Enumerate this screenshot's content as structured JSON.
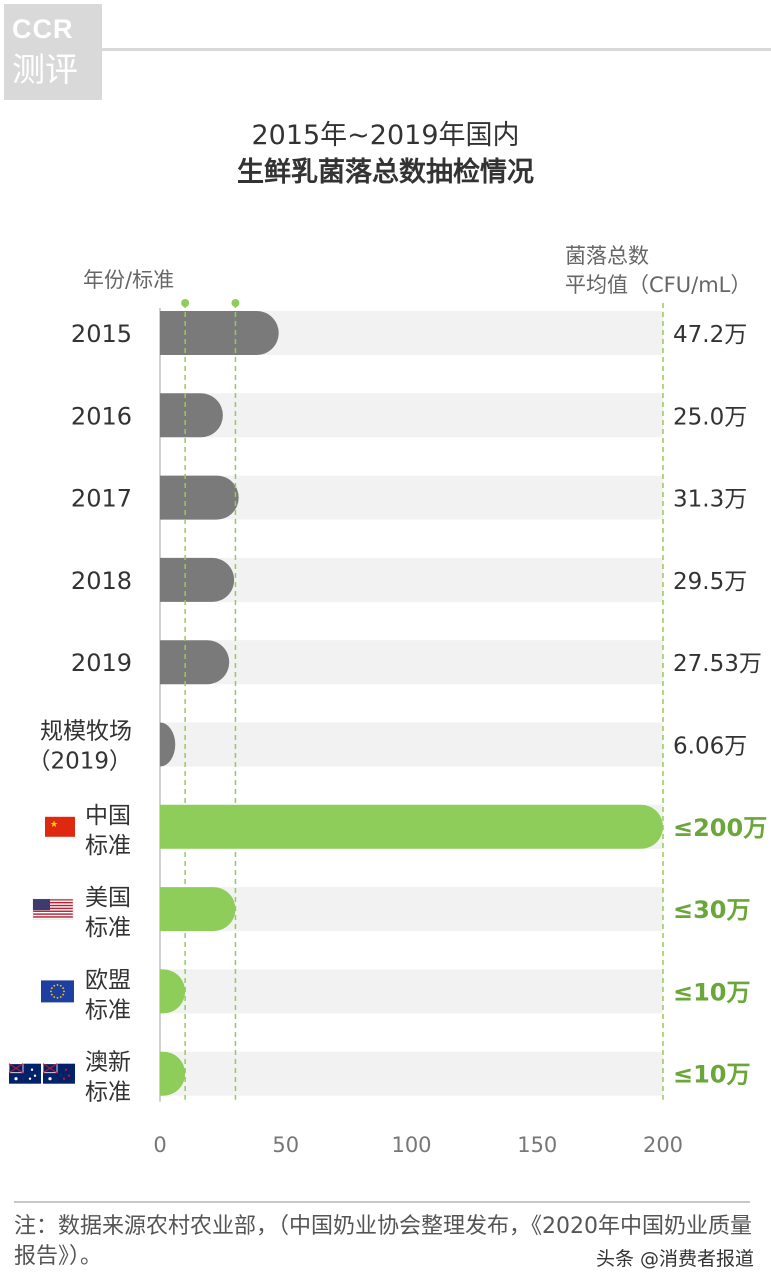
{
  "logo": {
    "line1": "CCR",
    "line2": "测评"
  },
  "title": {
    "line1": "2015年~2019年国内",
    "line2": "生鲜乳菌落总数抽检情况"
  },
  "chart_data": {
    "type": "bar",
    "orientation": "horizontal",
    "left_axis_label": "年份/标准",
    "right_axis_label_line1": "菌落总数",
    "right_axis_label_line2": "平均值（CFU/mL）",
    "xlim": [
      0,
      200
    ],
    "xticks": [
      0,
      50,
      100,
      150,
      200
    ],
    "xtick_labels": [
      "0",
      "50",
      "100",
      "150",
      "200"
    ],
    "reference_lines": [
      10,
      30,
      200
    ],
    "colors": {
      "sample": "#7a7a7a",
      "standard": "#8fcd5a",
      "track": "#f2f2f2",
      "value_standard": "#6aa63a"
    },
    "categories": [
      {
        "label": [
          "2015"
        ],
        "value": 47.2,
        "value_label": "47.2万",
        "kind": "sample"
      },
      {
        "label": [
          "2016"
        ],
        "value": 25.0,
        "value_label": "25.0万",
        "kind": "sample"
      },
      {
        "label": [
          "2017"
        ],
        "value": 31.3,
        "value_label": "31.3万",
        "kind": "sample"
      },
      {
        "label": [
          "2018"
        ],
        "value": 29.5,
        "value_label": "29.5万",
        "kind": "sample"
      },
      {
        "label": [
          "2019"
        ],
        "value": 27.53,
        "value_label": "27.53万",
        "kind": "sample"
      },
      {
        "label": [
          "规模牧场",
          "（2019）"
        ],
        "value": 6.06,
        "value_label": "6.06万",
        "kind": "sample"
      },
      {
        "label": [
          "中国",
          "标准"
        ],
        "value": 200,
        "value_label": "≤200万",
        "kind": "standard",
        "flag": "china-flag-icon"
      },
      {
        "label": [
          "美国",
          "标准"
        ],
        "value": 30,
        "value_label": "≤30万",
        "kind": "standard",
        "flag": "usa-flag-icon"
      },
      {
        "label": [
          "欧盟",
          "标准"
        ],
        "value": 10,
        "value_label": "≤10万",
        "kind": "standard",
        "flag": "eu-flag-icon"
      },
      {
        "label": [
          "澳新",
          "标准"
        ],
        "value": 10,
        "value_label": "≤10万",
        "kind": "standard",
        "flag": "au-nz-flag-icon"
      }
    ]
  },
  "footnote": "注：数据来源农村农业部，（中国奶业协会整理发布，《2020年中国奶业质量报告》）。",
  "watermark": "头条 @消费者报道"
}
